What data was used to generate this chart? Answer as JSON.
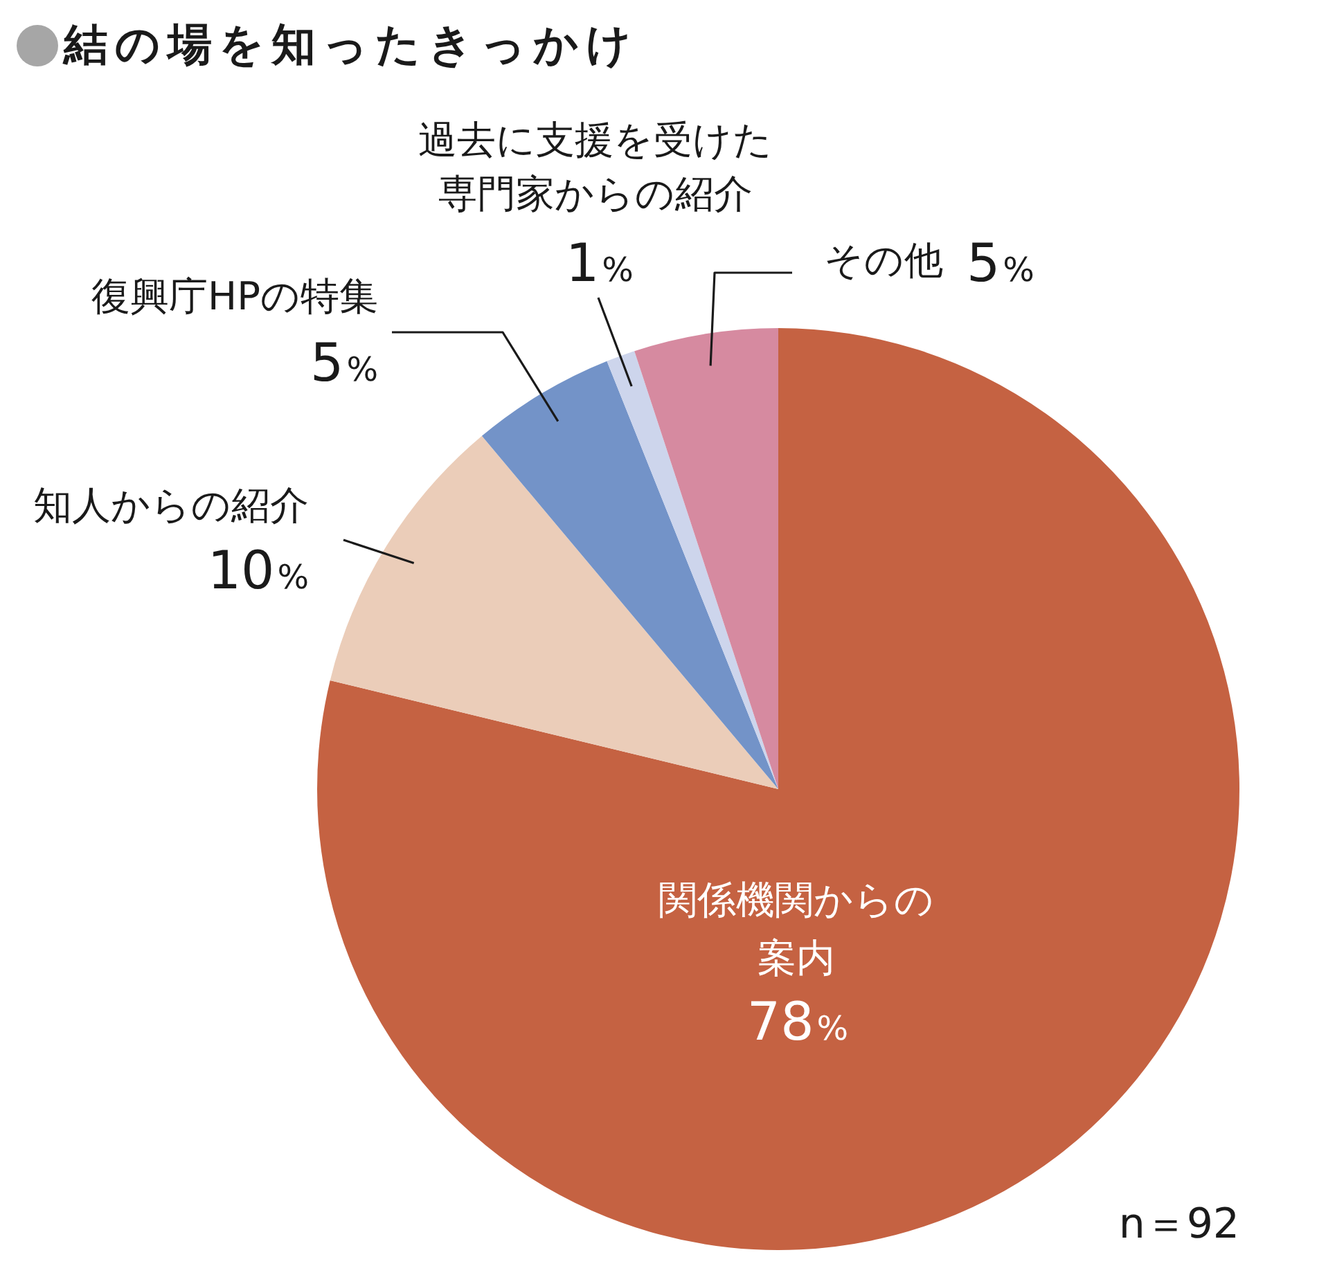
{
  "chart_data": {
    "type": "pie",
    "title": "結の場を知ったきっかけ",
    "categories": [
      "関係機関からの案内",
      "知人からの紹介",
      "復興庁HPの特集",
      "過去に支援を受けた専門家からの紹介",
      "その他"
    ],
    "values": [
      78,
      10,
      5,
      1,
      5
    ],
    "value_labels": [
      "78%",
      "10%",
      "5%",
      "1%",
      "5%"
    ],
    "colors": [
      "#c56242",
      "#ebcdb9",
      "#7393c8",
      "#cdd5ec",
      "#d68aa0"
    ],
    "legend": false,
    "annotations": [
      "n＝92"
    ]
  }
}
